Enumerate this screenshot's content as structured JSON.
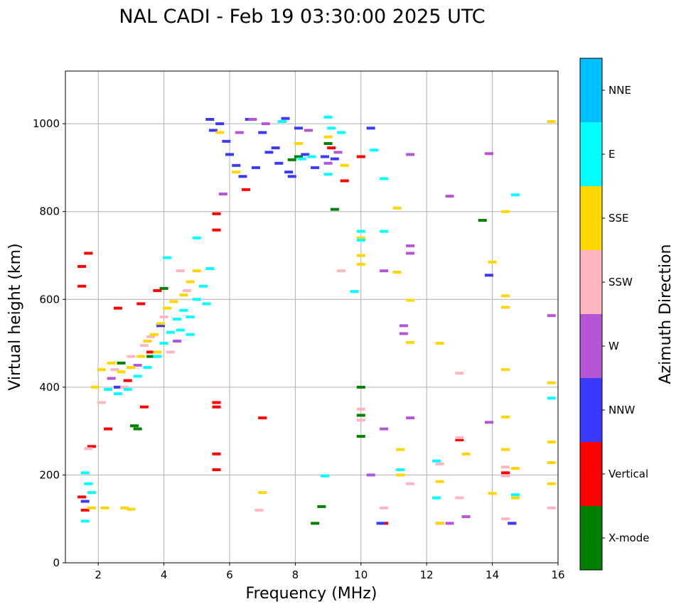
{
  "chart_data": {
    "type": "scatter",
    "title": "NAL CADI - Feb 19 03:30:00 2025 UTC",
    "xlabel": "Frequency (MHz)",
    "ylabel": "Virtual height (km)",
    "xlim": [
      1,
      16
    ],
    "ylim": [
      0,
      1120
    ],
    "xticks": [
      2,
      4,
      6,
      8,
      10,
      12,
      14,
      16
    ],
    "yticks": [
      0,
      200,
      400,
      600,
      800,
      1000
    ],
    "grid": true,
    "colorbar": {
      "label": "Azimuth Direction",
      "categories": [
        {
          "name": "X-mode",
          "color": "#008000"
        },
        {
          "name": "Vertical",
          "color": "#ff0000"
        },
        {
          "name": "NNW",
          "color": "#3a3aff"
        },
        {
          "name": "W",
          "color": "#b556d6"
        },
        {
          "name": "SSW",
          "color": "#ffb6c1"
        },
        {
          "name": "SSE",
          "color": "#ffd700"
        },
        {
          "name": "E",
          "color": "#00ffff"
        },
        {
          "name": "NNE",
          "color": "#00bfff"
        }
      ]
    },
    "series": [
      {
        "name": "X-mode",
        "color": "#008000",
        "points": [
          [
            3.1,
            312
          ],
          [
            3.2,
            305
          ],
          [
            8.6,
            90
          ],
          [
            8.8,
            128
          ],
          [
            9.0,
            955
          ],
          [
            9.2,
            805
          ],
          [
            10.0,
            400
          ],
          [
            10.0,
            336
          ],
          [
            10.0,
            288
          ],
          [
            13.7,
            780
          ],
          [
            7.9,
            918
          ],
          [
            8.1,
            925
          ],
          [
            4.0,
            625
          ],
          [
            3.6,
            470
          ],
          [
            2.7,
            455
          ]
        ]
      },
      {
        "name": "Vertical",
        "color": "#ff0000",
        "points": [
          [
            1.5,
            675
          ],
          [
            1.5,
            630
          ],
          [
            1.7,
            705
          ],
          [
            1.5,
            150
          ],
          [
            1.6,
            120
          ],
          [
            1.8,
            265
          ],
          [
            2.3,
            305
          ],
          [
            2.9,
            415
          ],
          [
            3.0,
            445
          ],
          [
            3.3,
            590
          ],
          [
            3.4,
            355
          ],
          [
            3.6,
            480
          ],
          [
            5.6,
            795
          ],
          [
            5.6,
            758
          ],
          [
            5.6,
            365
          ],
          [
            5.6,
            355
          ],
          [
            5.6,
            248
          ],
          [
            5.6,
            212
          ],
          [
            6.5,
            850
          ],
          [
            7.0,
            330
          ],
          [
            9.1,
            945
          ],
          [
            9.5,
            870
          ],
          [
            10.0,
            925
          ],
          [
            10.7,
            90
          ],
          [
            13.0,
            280
          ],
          [
            14.4,
            205
          ],
          [
            14.6,
            90
          ],
          [
            3.8,
            620
          ],
          [
            2.6,
            580
          ]
        ]
      },
      {
        "name": "NNW",
        "color": "#3a3aff",
        "points": [
          [
            5.4,
            1010
          ],
          [
            5.5,
            985
          ],
          [
            5.7,
            1000
          ],
          [
            5.9,
            960
          ],
          [
            6.0,
            930
          ],
          [
            6.2,
            905
          ],
          [
            6.4,
            880
          ],
          [
            6.6,
            1010
          ],
          [
            6.8,
            900
          ],
          [
            7.0,
            980
          ],
          [
            7.2,
            935
          ],
          [
            7.4,
            945
          ],
          [
            7.5,
            910
          ],
          [
            7.7,
            1012
          ],
          [
            7.8,
            890
          ],
          [
            7.9,
            880
          ],
          [
            8.1,
            990
          ],
          [
            8.3,
            930
          ],
          [
            8.6,
            900
          ],
          [
            8.9,
            925
          ],
          [
            9.2,
            920
          ],
          [
            10.3,
            990
          ],
          [
            10.6,
            90
          ],
          [
            13.9,
            655
          ],
          [
            14.6,
            90
          ],
          [
            1.6,
            140
          ],
          [
            2.6,
            400
          ],
          [
            3.9,
            540
          ]
        ]
      },
      {
        "name": "W",
        "color": "#b556d6",
        "points": [
          [
            5.8,
            840
          ],
          [
            6.3,
            980
          ],
          [
            6.7,
            1010
          ],
          [
            7.1,
            1000
          ],
          [
            8.4,
            985
          ],
          [
            9.0,
            910
          ],
          [
            9.3,
            935
          ],
          [
            10.3,
            200
          ],
          [
            10.7,
            665
          ],
          [
            10.7,
            305
          ],
          [
            11.3,
            540
          ],
          [
            11.3,
            522
          ],
          [
            11.5,
            930
          ],
          [
            11.5,
            722
          ],
          [
            11.5,
            705
          ],
          [
            11.5,
            330
          ],
          [
            12.7,
            835
          ],
          [
            12.7,
            90
          ],
          [
            13.2,
            105
          ],
          [
            13.9,
            320
          ],
          [
            13.9,
            932
          ],
          [
            15.8,
            563
          ],
          [
            12.4,
            90
          ],
          [
            4.4,
            505
          ],
          [
            3.2,
            450
          ],
          [
            2.4,
            420
          ]
        ]
      },
      {
        "name": "SSW",
        "color": "#ffb6c1",
        "points": [
          [
            1.7,
            260
          ],
          [
            2.1,
            365
          ],
          [
            2.8,
            400
          ],
          [
            3.4,
            495
          ],
          [
            3.6,
            515
          ],
          [
            4.2,
            480
          ],
          [
            4.5,
            665
          ],
          [
            6.9,
            120
          ],
          [
            9.4,
            665
          ],
          [
            10.0,
            350
          ],
          [
            10.0,
            325
          ],
          [
            10.7,
            125
          ],
          [
            11.5,
            180
          ],
          [
            12.4,
            225
          ],
          [
            13.0,
            432
          ],
          [
            13.0,
            285
          ],
          [
            13.0,
            148
          ],
          [
            14.4,
            218
          ],
          [
            14.4,
            198
          ],
          [
            15.8,
            125
          ],
          [
            14.4,
            100
          ],
          [
            2.5,
            440
          ],
          [
            3.0,
            470
          ],
          [
            4.0,
            560
          ],
          [
            4.7,
            620
          ]
        ]
      },
      {
        "name": "SSE",
        "color": "#ffd700",
        "points": [
          [
            1.9,
            400
          ],
          [
            2.1,
            440
          ],
          [
            2.4,
            455
          ],
          [
            2.7,
            435
          ],
          [
            3.0,
            445
          ],
          [
            3.3,
            470
          ],
          [
            3.5,
            505
          ],
          [
            3.7,
            520
          ],
          [
            3.9,
            545
          ],
          [
            4.1,
            580
          ],
          [
            4.3,
            595
          ],
          [
            4.6,
            610
          ],
          [
            4.8,
            640
          ],
          [
            5.0,
            665
          ],
          [
            2.8,
            125
          ],
          [
            3.0,
            122
          ],
          [
            5.7,
            980
          ],
          [
            6.2,
            890
          ],
          [
            7.0,
            160
          ],
          [
            8.1,
            955
          ],
          [
            9.0,
            970
          ],
          [
            9.5,
            905
          ],
          [
            10.0,
            740
          ],
          [
            10.0,
            700
          ],
          [
            10.0,
            680
          ],
          [
            11.1,
            808
          ],
          [
            11.1,
            662
          ],
          [
            11.2,
            258
          ],
          [
            11.2,
            200
          ],
          [
            11.5,
            598
          ],
          [
            11.5,
            502
          ],
          [
            12.4,
            500
          ],
          [
            12.4,
            185
          ],
          [
            12.4,
            90
          ],
          [
            13.2,
            248
          ],
          [
            14.0,
            685
          ],
          [
            14.0,
            158
          ],
          [
            14.4,
            800
          ],
          [
            14.4,
            608
          ],
          [
            14.4,
            582
          ],
          [
            14.4,
            440
          ],
          [
            14.4,
            332
          ],
          [
            14.4,
            258
          ],
          [
            14.7,
            215
          ],
          [
            14.7,
            148
          ],
          [
            15.8,
            1005
          ],
          [
            15.8,
            410
          ],
          [
            15.8,
            275
          ],
          [
            15.8,
            228
          ],
          [
            15.8,
            180
          ],
          [
            1.8,
            125
          ],
          [
            2.2,
            125
          ],
          [
            3.8,
            480
          ]
        ]
      },
      {
        "name": "E",
        "color": "#00ffff",
        "points": [
          [
            1.6,
            205
          ],
          [
            1.7,
            180
          ],
          [
            1.8,
            160
          ],
          [
            1.6,
            95
          ],
          [
            2.3,
            395
          ],
          [
            2.6,
            385
          ],
          [
            2.9,
            395
          ],
          [
            3.2,
            425
          ],
          [
            3.5,
            445
          ],
          [
            3.8,
            470
          ],
          [
            4.0,
            500
          ],
          [
            4.2,
            525
          ],
          [
            4.4,
            555
          ],
          [
            4.6,
            575
          ],
          [
            4.8,
            560
          ],
          [
            5.0,
            600
          ],
          [
            5.2,
            630
          ],
          [
            5.4,
            670
          ],
          [
            5.0,
            740
          ],
          [
            4.1,
            695
          ],
          [
            4.8,
            520
          ],
          [
            7.6,
            1005
          ],
          [
            8.2,
            920
          ],
          [
            8.5,
            925
          ],
          [
            9.0,
            1015
          ],
          [
            9.0,
            885
          ],
          [
            9.1,
            990
          ],
          [
            9.4,
            980
          ],
          [
            10.0,
            755
          ],
          [
            10.0,
            735
          ],
          [
            10.4,
            940
          ],
          [
            10.7,
            875
          ],
          [
            10.7,
            755
          ],
          [
            9.8,
            618
          ],
          [
            8.9,
            198
          ],
          [
            11.2,
            212
          ],
          [
            12.3,
            232
          ],
          [
            12.3,
            148
          ],
          [
            14.7,
            838
          ],
          [
            14.7,
            155
          ],
          [
            15.8,
            375
          ],
          [
            5.3,
            590
          ],
          [
            4.5,
            530
          ]
        ]
      }
    ]
  }
}
